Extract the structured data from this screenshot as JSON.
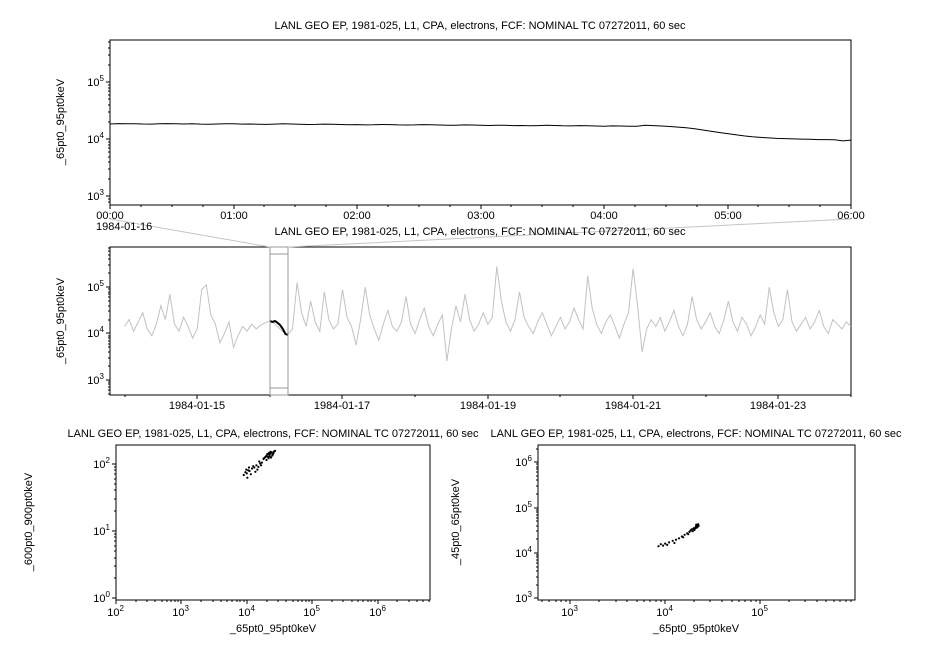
{
  "page": {
    "background": "#ffffff"
  },
  "chart_data": [
    {
      "id": "zoom",
      "type": "line",
      "title": "LANL GEO EP, 1981-025, L1, CPA, electrons, FCF: NOMINAL TC 07272011, 60 sec",
      "ylabel": "_65pt0_95pt0keV",
      "date_label": "1984-01-16",
      "series_color": "#000000",
      "xlog": false,
      "xlim": [
        0,
        6
      ],
      "xticks": [
        {
          "v": 0,
          "label": "00:00"
        },
        {
          "v": 1,
          "label": "01:00"
        },
        {
          "v": 2,
          "label": "02:00"
        },
        {
          "v": 3,
          "label": "03:00"
        },
        {
          "v": 4,
          "label": "04:00"
        },
        {
          "v": 5,
          "label": "05:00"
        },
        {
          "v": 6,
          "label": "06:00"
        }
      ],
      "xminor_step": 0.25,
      "ylim_log": [
        2.85,
        5.74
      ],
      "ydecades": [
        3,
        4,
        5
      ],
      "x_start": 0,
      "x_step": 0.0666667,
      "values": [
        18600,
        18900,
        18700,
        18800,
        18600,
        18500,
        18700,
        18900,
        18800,
        18600,
        18700,
        18500,
        18400,
        18600,
        18800,
        18700,
        18500,
        18600,
        18400,
        18300,
        18500,
        18700,
        18600,
        18400,
        18200,
        18300,
        18500,
        18400,
        18200,
        18000,
        18100,
        17900,
        18000,
        18200,
        18100,
        17900,
        17800,
        17900,
        18100,
        18000,
        17800,
        17600,
        17700,
        17900,
        17800,
        17600,
        17500,
        17700,
        17600,
        17400,
        17500,
        17300,
        17400,
        17600,
        17500,
        17300,
        17200,
        17400,
        17300,
        17100,
        17000,
        17200,
        17100,
        16900,
        17000,
        17600,
        17400,
        17100,
        16800,
        16400,
        15900,
        15300,
        14600,
        13900,
        13200,
        12600,
        12000,
        11500,
        11100,
        10800,
        10600,
        10400,
        10300,
        10200,
        10100,
        10000,
        9900,
        9900,
        9800,
        9400,
        9700
      ]
    },
    {
      "id": "context",
      "type": "line",
      "title": "LANL GEO EP, 1981-025, L1, CPA, electrons, FCF: NOMINAL TC 07272011, 60 sec",
      "ylabel": "_65pt0_95pt0keV",
      "series_color": "#c2c2c2",
      "xlog": false,
      "xlim": [
        13.8,
        24.0
      ],
      "xticks": [
        {
          "v": 15,
          "label": "1984-01-15"
        },
        {
          "v": 17,
          "label": "1984-01-17"
        },
        {
          "v": 19,
          "label": "1984-01-19"
        },
        {
          "v": 21,
          "label": "1984-01-21"
        },
        {
          "v": 23,
          "label": "1984-01-23"
        }
      ],
      "xminor_step": 1,
      "ylim_log": [
        2.67,
        5.87
      ],
      "ydecades": [
        3,
        4,
        5
      ],
      "x_start": 14.0,
      "x_step": 0.0625,
      "log_values": [
        4.15,
        4.3,
        4.05,
        4.25,
        4.45,
        4.1,
        3.95,
        4.2,
        4.6,
        4.3,
        4.85,
        4.2,
        4.05,
        4.35,
        4.15,
        3.9,
        4.1,
        4.95,
        5.05,
        4.4,
        4.2,
        3.8,
        4.0,
        4.25,
        3.7,
        3.95,
        4.15,
        4.05,
        4.2,
        4.1,
        4.18,
        4.23,
        4.27,
        4.22,
        4.12,
        4.03,
        3.98,
        4.1,
        5.1,
        4.45,
        4.15,
        4.7,
        4.25,
        4.05,
        4.9,
        4.3,
        4.1,
        4.2,
        4.95,
        4.35,
        4.15,
        3.75,
        4.3,
        5.0,
        4.4,
        4.1,
        3.85,
        4.2,
        4.5,
        4.15,
        4.05,
        4.25,
        4.8,
        4.2,
        4.0,
        4.3,
        4.55,
        4.15,
        3.95,
        4.2,
        4.4,
        3.4,
        4.1,
        4.6,
        4.25,
        4.85,
        4.3,
        4.05,
        4.2,
        4.45,
        4.2,
        4.35,
        5.45,
        4.7,
        4.25,
        4.05,
        4.3,
        4.9,
        4.35,
        4.15,
        4.0,
        4.25,
        4.45,
        4.2,
        3.95,
        4.15,
        4.35,
        4.1,
        4.25,
        4.55,
        4.3,
        4.1,
        5.25,
        4.55,
        4.2,
        4.0,
        4.25,
        4.4,
        4.15,
        3.9,
        4.2,
        4.45,
        5.4,
        4.6,
        3.6,
        4.1,
        4.3,
        4.15,
        4.35,
        4.05,
        4.25,
        4.5,
        4.15,
        3.95,
        4.2,
        4.8,
        4.3,
        4.1,
        4.25,
        4.45,
        4.15,
        4.0,
        4.3,
        4.7,
        4.25,
        4.05,
        4.35,
        4.2,
        3.95,
        4.15,
        4.4,
        4.2,
        5.0,
        4.45,
        4.15,
        4.3,
        4.95,
        4.25,
        4.05,
        4.2,
        4.35,
        4.1,
        4.25,
        4.5,
        4.15,
        4.0,
        4.3,
        4.2,
        4.1,
        4.25,
        4.15
      ],
      "highlight": {
        "color": "#000000",
        "x_start": 16.0,
        "x_step": 0.0357,
        "log_values": [
          4.27,
          4.25,
          4.27,
          4.23,
          4.18,
          4.1,
          3.99,
          3.97
        ]
      },
      "selection": {
        "x0": 16.0,
        "x1": 16.25
      }
    },
    {
      "id": "scatter1",
      "type": "scatter",
      "title": "LANL GEO EP, 1981-025, L1, CPA, electrons, FCF: NOMINAL TC 07272011, 60 sec",
      "ylabel": "_600pt0_900pt0keV",
      "xlabel": "_65pt0_95pt0keV",
      "xlog": true,
      "xlim_log": [
        2,
        6.8
      ],
      "xdecades": [
        2,
        3,
        4,
        5,
        6
      ],
      "ylim_log": [
        -0.03,
        2.28
      ],
      "ydecades": [
        0,
        1,
        2
      ],
      "points": [
        [
          18000,
          118
        ],
        [
          19000,
          125
        ],
        [
          20000,
          131
        ],
        [
          21000,
          127
        ],
        [
          22000,
          136
        ],
        [
          23000,
          142
        ],
        [
          21500,
          121
        ],
        [
          20500,
          138
        ],
        [
          22500,
          129
        ],
        [
          24000,
          148
        ],
        [
          25000,
          139
        ],
        [
          23500,
          124
        ],
        [
          26000,
          152
        ],
        [
          24500,
          133
        ],
        [
          22000,
          146
        ],
        [
          20000,
          114
        ],
        [
          19500,
          128
        ],
        [
          21000,
          141
        ],
        [
          23000,
          151
        ],
        [
          25500,
          144
        ],
        [
          27000,
          156
        ],
        [
          18500,
          122
        ],
        [
          9000,
          68
        ],
        [
          9500,
          75
        ],
        [
          10000,
          72
        ],
        [
          10500,
          80
        ],
        [
          11000,
          78
        ],
        [
          12000,
          85
        ],
        [
          11500,
          70
        ],
        [
          13000,
          88
        ],
        [
          12500,
          92
        ],
        [
          14000,
          95
        ],
        [
          15000,
          90
        ],
        [
          16000,
          101
        ],
        [
          15500,
          108
        ],
        [
          17000,
          104
        ],
        [
          16500,
          95
        ],
        [
          14500,
          82
        ],
        [
          13500,
          76
        ],
        [
          10800,
          88
        ],
        [
          9800,
          82
        ],
        [
          10200,
          62
        ]
      ]
    },
    {
      "id": "scatter2",
      "type": "scatter",
      "title": "LANL GEO EP, 1981-025, L1, CPA, electrons, FCF: NOMINAL TC 07272011, 60 sec",
      "ylabel": "_45pt0_65pt0keV",
      "xlabel": "_65pt0_95pt0keV",
      "xlog": true,
      "xlim_log": [
        2.66,
        6.0
      ],
      "xdecades": [
        3,
        4,
        5
      ],
      "ylim_log": [
        2.96,
        6.38
      ],
      "ydecades": [
        3,
        4,
        5,
        6
      ],
      "points": [
        [
          8500,
          14000
        ],
        [
          9000,
          15500
        ],
        [
          9500,
          14500
        ],
        [
          10000,
          16000
        ],
        [
          10500,
          15000
        ],
        [
          11000,
          17000
        ],
        [
          12000,
          18500
        ],
        [
          12500,
          16500
        ],
        [
          13000,
          19500
        ],
        [
          14000,
          21000
        ],
        [
          15000,
          23000
        ],
        [
          15500,
          22000
        ],
        [
          16000,
          25000
        ],
        [
          17000,
          27000
        ],
        [
          17500,
          26000
        ],
        [
          18000,
          29000
        ],
        [
          18500,
          31000
        ],
        [
          19000,
          33000
        ],
        [
          19500,
          30000
        ],
        [
          20000,
          35000
        ],
        [
          20500,
          34000
        ],
        [
          21000,
          37000
        ],
        [
          21200,
          39000
        ],
        [
          21500,
          36000
        ],
        [
          21800,
          41000
        ],
        [
          22000,
          38000
        ],
        [
          22300,
          43000
        ],
        [
          21600,
          40000
        ],
        [
          20800,
          35500
        ],
        [
          21300,
          42000
        ],
        [
          22500,
          39500
        ],
        [
          20300,
          32000
        ],
        [
          19800,
          34000
        ],
        [
          21900,
          37500
        ],
        [
          22200,
          41500
        ],
        [
          21100,
          38500
        ]
      ]
    }
  ]
}
